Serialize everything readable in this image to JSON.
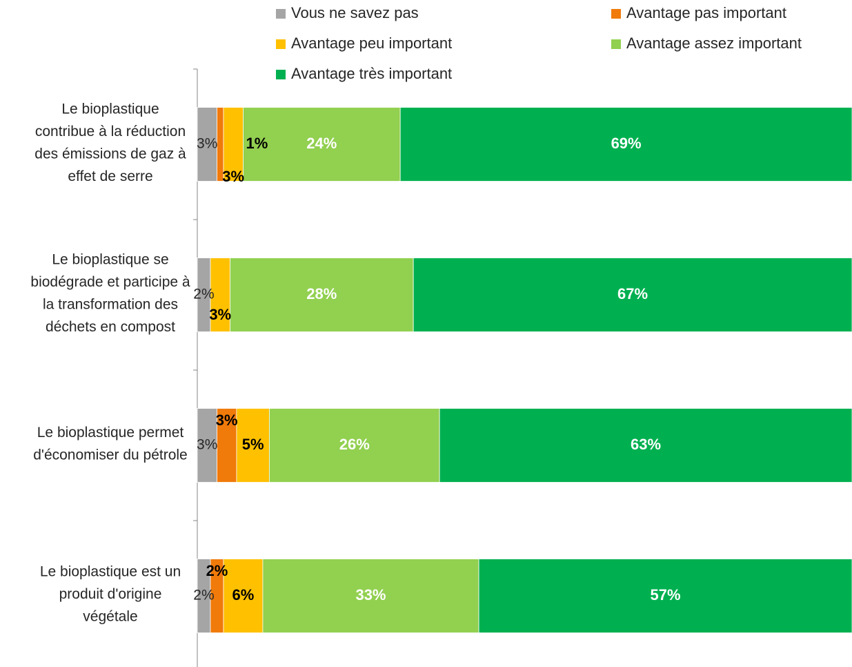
{
  "chart_data": {
    "type": "stacked-bar-horizontal",
    "categories": [
      "Le bioplastique contribue à la réduction des émissions de gaz à effet de serre",
      "Le bioplastique se biodégrade et participe à la transformation des déchets en compost",
      "Le bioplastique permet d'économiser du pétrole",
      "Le bioplastique est un produit d'origine végétale"
    ],
    "xlim": [
      0,
      100
    ],
    "series": [
      {
        "name": "Vous ne savez pas",
        "color": "#a5a5a5",
        "values": [
          3,
          2,
          3,
          2
        ],
        "value_labels": [
          "3%",
          "2%",
          "3%",
          "2%"
        ]
      },
      {
        "name": "Avantage pas important",
        "color": "#f07a0a",
        "values": [
          1,
          null,
          3,
          2
        ],
        "value_labels": [
          "1%",
          null,
          "3%",
          "2%"
        ]
      },
      {
        "name": "Avantage peu important",
        "color": "#ffc000",
        "values": [
          3,
          3,
          5,
          6
        ],
        "value_labels": [
          "3%",
          "3%",
          "5%",
          "6%"
        ]
      },
      {
        "name": "Avantage assez important",
        "color": "#92d050",
        "values": [
          24,
          28,
          26,
          33
        ],
        "value_labels": [
          "24%",
          "28%",
          "26%",
          "33%"
        ]
      },
      {
        "name": "Avantage très important",
        "color": "#00b050",
        "values": [
          69,
          67,
          63,
          57
        ],
        "value_labels": [
          "69%",
          "67%",
          "63%",
          "57%"
        ]
      }
    ],
    "legend": "top"
  }
}
